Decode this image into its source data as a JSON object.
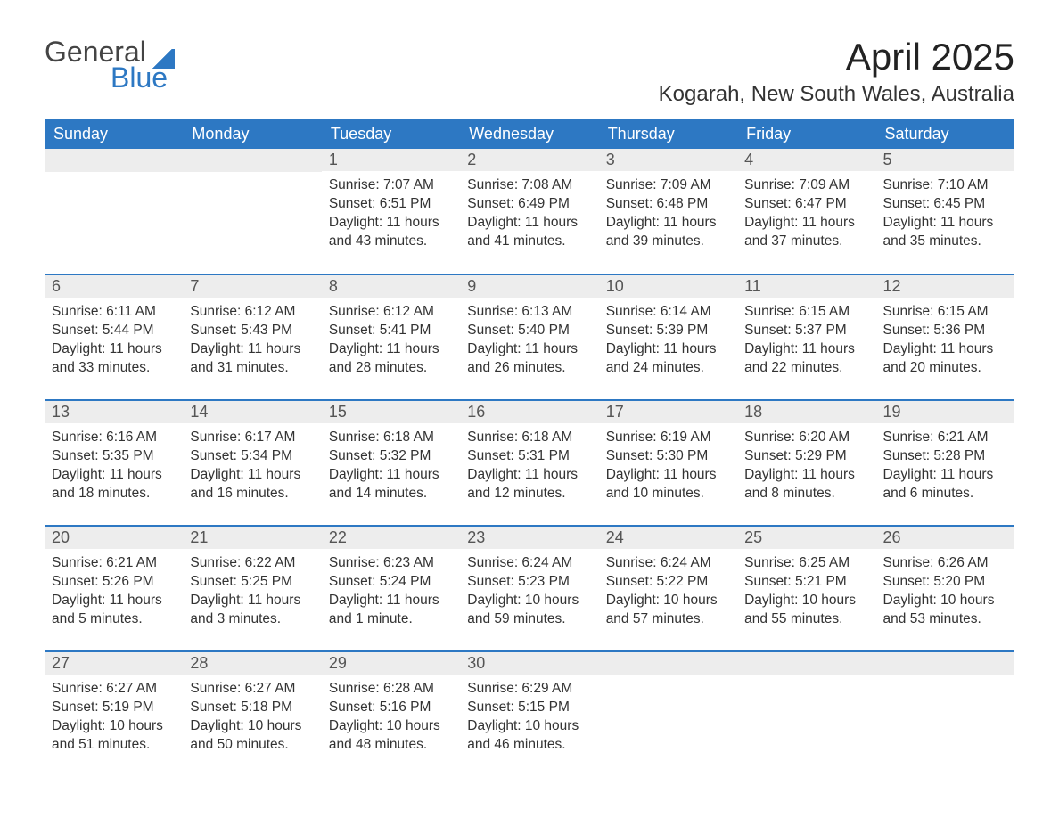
{
  "brand": {
    "part1": "General",
    "part2": "Blue"
  },
  "title": "April 2025",
  "location": "Kogarah, New South Wales, Australia",
  "colors": {
    "header_bg": "#2d78c3",
    "header_text": "#ffffff",
    "daynum_bg": "#ededed",
    "daynum_text": "#555555",
    "body_text": "#333333",
    "week_divider": "#2d78c3",
    "page_bg": "#ffffff"
  },
  "typography": {
    "month_title_pt": 42,
    "location_pt": 24,
    "dow_pt": 18,
    "daynum_pt": 18,
    "body_pt": 15.5,
    "font_family": "Segoe UI"
  },
  "days_of_week": [
    "Sunday",
    "Monday",
    "Tuesday",
    "Wednesday",
    "Thursday",
    "Friday",
    "Saturday"
  ],
  "weeks": [
    [
      {
        "num": "",
        "lines": []
      },
      {
        "num": "",
        "lines": []
      },
      {
        "num": "1",
        "lines": [
          "Sunrise: 7:07 AM",
          "Sunset: 6:51 PM",
          "Daylight: 11 hours and 43 minutes."
        ]
      },
      {
        "num": "2",
        "lines": [
          "Sunrise: 7:08 AM",
          "Sunset: 6:49 PM",
          "Daylight: 11 hours and 41 minutes."
        ]
      },
      {
        "num": "3",
        "lines": [
          "Sunrise: 7:09 AM",
          "Sunset: 6:48 PM",
          "Daylight: 11 hours and 39 minutes."
        ]
      },
      {
        "num": "4",
        "lines": [
          "Sunrise: 7:09 AM",
          "Sunset: 6:47 PM",
          "Daylight: 11 hours and 37 minutes."
        ]
      },
      {
        "num": "5",
        "lines": [
          "Sunrise: 7:10 AM",
          "Sunset: 6:45 PM",
          "Daylight: 11 hours and 35 minutes."
        ]
      }
    ],
    [
      {
        "num": "6",
        "lines": [
          "Sunrise: 6:11 AM",
          "Sunset: 5:44 PM",
          "Daylight: 11 hours and 33 minutes."
        ]
      },
      {
        "num": "7",
        "lines": [
          "Sunrise: 6:12 AM",
          "Sunset: 5:43 PM",
          "Daylight: 11 hours and 31 minutes."
        ]
      },
      {
        "num": "8",
        "lines": [
          "Sunrise: 6:12 AM",
          "Sunset: 5:41 PM",
          "Daylight: 11 hours and 28 minutes."
        ]
      },
      {
        "num": "9",
        "lines": [
          "Sunrise: 6:13 AM",
          "Sunset: 5:40 PM",
          "Daylight: 11 hours and 26 minutes."
        ]
      },
      {
        "num": "10",
        "lines": [
          "Sunrise: 6:14 AM",
          "Sunset: 5:39 PM",
          "Daylight: 11 hours and 24 minutes."
        ]
      },
      {
        "num": "11",
        "lines": [
          "Sunrise: 6:15 AM",
          "Sunset: 5:37 PM",
          "Daylight: 11 hours and 22 minutes."
        ]
      },
      {
        "num": "12",
        "lines": [
          "Sunrise: 6:15 AM",
          "Sunset: 5:36 PM",
          "Daylight: 11 hours and 20 minutes."
        ]
      }
    ],
    [
      {
        "num": "13",
        "lines": [
          "Sunrise: 6:16 AM",
          "Sunset: 5:35 PM",
          "Daylight: 11 hours and 18 minutes."
        ]
      },
      {
        "num": "14",
        "lines": [
          "Sunrise: 6:17 AM",
          "Sunset: 5:34 PM",
          "Daylight: 11 hours and 16 minutes."
        ]
      },
      {
        "num": "15",
        "lines": [
          "Sunrise: 6:18 AM",
          "Sunset: 5:32 PM",
          "Daylight: 11 hours and 14 minutes."
        ]
      },
      {
        "num": "16",
        "lines": [
          "Sunrise: 6:18 AM",
          "Sunset: 5:31 PM",
          "Daylight: 11 hours and 12 minutes."
        ]
      },
      {
        "num": "17",
        "lines": [
          "Sunrise: 6:19 AM",
          "Sunset: 5:30 PM",
          "Daylight: 11 hours and 10 minutes."
        ]
      },
      {
        "num": "18",
        "lines": [
          "Sunrise: 6:20 AM",
          "Sunset: 5:29 PM",
          "Daylight: 11 hours and 8 minutes."
        ]
      },
      {
        "num": "19",
        "lines": [
          "Sunrise: 6:21 AM",
          "Sunset: 5:28 PM",
          "Daylight: 11 hours and 6 minutes."
        ]
      }
    ],
    [
      {
        "num": "20",
        "lines": [
          "Sunrise: 6:21 AM",
          "Sunset: 5:26 PM",
          "Daylight: 11 hours and 5 minutes."
        ]
      },
      {
        "num": "21",
        "lines": [
          "Sunrise: 6:22 AM",
          "Sunset: 5:25 PM",
          "Daylight: 11 hours and 3 minutes."
        ]
      },
      {
        "num": "22",
        "lines": [
          "Sunrise: 6:23 AM",
          "Sunset: 5:24 PM",
          "Daylight: 11 hours and 1 minute."
        ]
      },
      {
        "num": "23",
        "lines": [
          "Sunrise: 6:24 AM",
          "Sunset: 5:23 PM",
          "Daylight: 10 hours and 59 minutes."
        ]
      },
      {
        "num": "24",
        "lines": [
          "Sunrise: 6:24 AM",
          "Sunset: 5:22 PM",
          "Daylight: 10 hours and 57 minutes."
        ]
      },
      {
        "num": "25",
        "lines": [
          "Sunrise: 6:25 AM",
          "Sunset: 5:21 PM",
          "Daylight: 10 hours and 55 minutes."
        ]
      },
      {
        "num": "26",
        "lines": [
          "Sunrise: 6:26 AM",
          "Sunset: 5:20 PM",
          "Daylight: 10 hours and 53 minutes."
        ]
      }
    ],
    [
      {
        "num": "27",
        "lines": [
          "Sunrise: 6:27 AM",
          "Sunset: 5:19 PM",
          "Daylight: 10 hours and 51 minutes."
        ]
      },
      {
        "num": "28",
        "lines": [
          "Sunrise: 6:27 AM",
          "Sunset: 5:18 PM",
          "Daylight: 10 hours and 50 minutes."
        ]
      },
      {
        "num": "29",
        "lines": [
          "Sunrise: 6:28 AM",
          "Sunset: 5:16 PM",
          "Daylight: 10 hours and 48 minutes."
        ]
      },
      {
        "num": "30",
        "lines": [
          "Sunrise: 6:29 AM",
          "Sunset: 5:15 PM",
          "Daylight: 10 hours and 46 minutes."
        ]
      },
      {
        "num": "",
        "lines": []
      },
      {
        "num": "",
        "lines": []
      },
      {
        "num": "",
        "lines": []
      }
    ]
  ]
}
